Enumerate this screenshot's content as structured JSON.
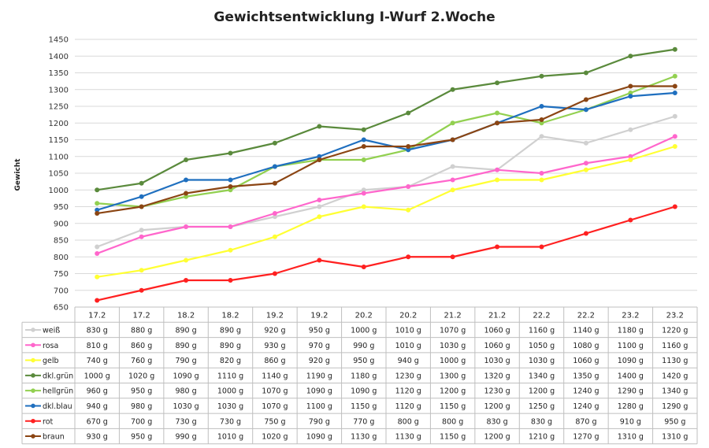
{
  "chart_data": {
    "type": "line",
    "title": "Gewichtsentwicklung I-Wurf 2.Woche",
    "xlabel": "",
    "ylabel": "Gewicht",
    "ylim": [
      650,
      1450
    ],
    "ytick_step": 50,
    "grid": true,
    "legend": "data-table",
    "unit": "g",
    "categories": [
      "17.2",
      "17.2",
      "18.2",
      "18.2",
      "19.2",
      "19.2",
      "20.2",
      "20.2",
      "21.2",
      "21.2",
      "22.2",
      "22.2",
      "23.2",
      "23.2"
    ],
    "series": [
      {
        "name": "weiß",
        "color": "#d0d0d0",
        "values": [
          830,
          880,
          890,
          890,
          920,
          950,
          1000,
          1010,
          1070,
          1060,
          1160,
          1140,
          1180,
          1220
        ]
      },
      {
        "name": "rosa",
        "color": "#ff66cc",
        "values": [
          810,
          860,
          890,
          890,
          930,
          970,
          990,
          1010,
          1030,
          1060,
          1050,
          1080,
          1100,
          1160
        ]
      },
      {
        "name": "gelb",
        "color": "#ffff33",
        "values": [
          740,
          760,
          790,
          820,
          860,
          920,
          950,
          940,
          1000,
          1030,
          1030,
          1060,
          1090,
          1130
        ]
      },
      {
        "name": "dkl.grün",
        "color": "#5a8a3c",
        "values": [
          1000,
          1020,
          1090,
          1110,
          1140,
          1190,
          1180,
          1230,
          1300,
          1320,
          1340,
          1350,
          1400,
          1420
        ]
      },
      {
        "name": "hellgrün",
        "color": "#92d050",
        "values": [
          960,
          950,
          980,
          1000,
          1070,
          1090,
          1090,
          1120,
          1200,
          1230,
          1200,
          1240,
          1290,
          1340
        ]
      },
      {
        "name": "dkl.blau",
        "color": "#1f6fbf",
        "values": [
          940,
          980,
          1030,
          1030,
          1070,
          1100,
          1150,
          1120,
          1150,
          1200,
          1250,
          1240,
          1280,
          1290
        ]
      },
      {
        "name": "rot",
        "color": "#ff2020",
        "values": [
          670,
          700,
          730,
          730,
          750,
          790,
          770,
          800,
          800,
          830,
          830,
          870,
          910,
          950
        ]
      },
      {
        "name": "braun",
        "color": "#8b4513",
        "values": [
          930,
          950,
          990,
          1010,
          1020,
          1090,
          1130,
          1130,
          1150,
          1200,
          1210,
          1270,
          1310,
          1310
        ]
      }
    ]
  }
}
